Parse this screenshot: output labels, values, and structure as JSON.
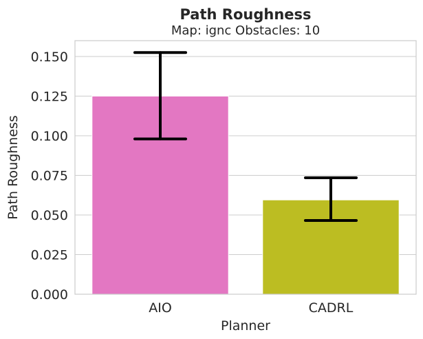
{
  "chart_data": {
    "type": "bar",
    "title": "Path Roughness",
    "subtitle": "Map: ignc Obstacles: 10",
    "xlabel": "Planner",
    "ylabel": "Path Roughness",
    "categories": [
      "AIO",
      "CADRL"
    ],
    "values": [
      0.125,
      0.0595
    ],
    "error_low": [
      0.098,
      0.0465
    ],
    "error_high": [
      0.1525,
      0.0735
    ],
    "bar_colors": [
      "#e377c2",
      "#bcbd22"
    ],
    "ylim": [
      0,
      0.16
    ],
    "yticks": [
      0,
      0.025,
      0.05,
      0.075,
      0.1,
      0.125,
      0.15
    ],
    "ytick_labels": [
      "0.000",
      "0.025",
      "0.050",
      "0.075",
      "0.100",
      "0.125",
      "0.150"
    ],
    "grid": "horizontal"
  }
}
